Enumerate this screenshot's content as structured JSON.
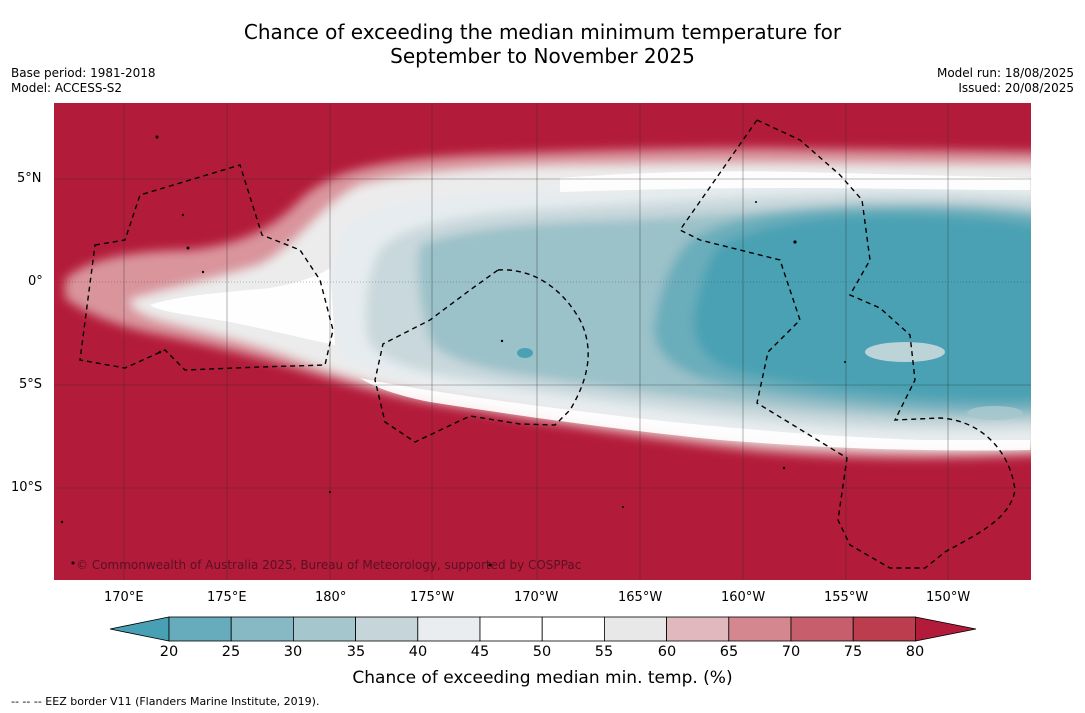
{
  "title": {
    "line1": "Chance of exceeding the median minimum temperature for",
    "line2": "September to November 2025"
  },
  "meta": {
    "base_period": "Base period: 1981-2018",
    "model": "Model: ACCESS-S2",
    "model_run": "Model run: 18/08/2025",
    "issued": "Issued: 20/08/2025"
  },
  "credit": "© Commonwealth of Australia 2025, Bureau of Meteorology, supported by COSPPac",
  "axes": {
    "lat_ticks": [
      "5°N",
      "0°",
      "5°S",
      "10°S"
    ],
    "lon_ticks": [
      "170°E",
      "175°E",
      "180°",
      "175°W",
      "170°W",
      "165°W",
      "160°W",
      "155°W",
      "150°W"
    ]
  },
  "colorbar": {
    "title": "Chance of exceeding median min. temp. (%)",
    "ticks": [
      "20",
      "25",
      "30",
      "35",
      "40",
      "45",
      "50",
      "55",
      "60",
      "65",
      "70",
      "75",
      "80"
    ],
    "colors": [
      "#47a0b3",
      "#67acbc",
      "#86b9c4",
      "#a6c6cd",
      "#c5d5d9",
      "#e9edf0",
      "#ffffff",
      "#ffffff",
      "#e8e8e8",
      "#e0b8bd",
      "#d4878f",
      "#c65e6c",
      "#bb3d4e",
      "#b31b3a"
    ]
  },
  "legend_note": "-- -- -- EEZ border V11 (Flanders Marine Institute, 2019)."
}
